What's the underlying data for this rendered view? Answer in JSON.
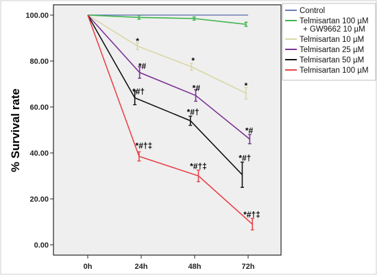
{
  "chart_data": {
    "type": "line",
    "ylabel": "% Survival rate",
    "xlabel": "",
    "categories": [
      "0h",
      "24h",
      "48h",
      "72h"
    ],
    "yticks": [
      "0.00",
      "20.00",
      "40.00",
      "60.00",
      "80.00",
      "100.00"
    ],
    "ylim": [
      -3,
      103
    ],
    "grid": false,
    "legend_position": "right",
    "series": [
      {
        "name": "Control",
        "color": "#6b7fb5",
        "x": [
          0,
          1,
          2,
          3
        ],
        "values": [
          100,
          100,
          100,
          100
        ],
        "err": [
          0,
          0,
          0,
          0
        ]
      },
      {
        "name": "Telmisartan 100 µM\n+ GW9662 10 µM",
        "color": "#3cb44b",
        "x": [
          0,
          0.96,
          1.99,
          2.96
        ],
        "values": [
          100,
          99,
          98.5,
          96
        ],
        "err": [
          0,
          0.8,
          0.7,
          0.9
        ]
      },
      {
        "name": "Telmisartan 10 µM",
        "color": "#d9d7a6",
        "x": [
          0,
          0.93,
          1.94,
          2.96
        ],
        "values": [
          100,
          86.5,
          77.5,
          66
        ],
        "err": [
          0,
          1.5,
          1.5,
          2.5
        ]
      },
      {
        "name": "Telmisartan 25 µM",
        "color": "#7b3294",
        "x": [
          0,
          0.97,
          2.02,
          3.03
        ],
        "values": [
          100,
          75,
          65,
          46
        ],
        "err": [
          0,
          2.5,
          2.5,
          2
        ]
      },
      {
        "name": "Telmisartan 50 µM",
        "color": "#111111",
        "x": [
          0,
          0.88,
          1.92,
          2.89
        ],
        "values": [
          100,
          64,
          54,
          30.5
        ],
        "err": [
          0,
          3,
          2,
          5.5
        ]
      },
      {
        "name": "Telmisartan 100 µM",
        "color": "#e8444a",
        "x": [
          0,
          0.96,
          2.07,
          3.08
        ],
        "values": [
          100,
          38.5,
          30,
          9
        ],
        "err": [
          0,
          2,
          2.5,
          2.5
        ]
      }
    ],
    "annotations": [
      {
        "text": "*",
        "x": 0.93,
        "y": 87.5
      },
      {
        "text": "*#",
        "x": 1.02,
        "y": 76.5
      },
      {
        "text": "*#†",
        "x": 0.95,
        "y": 65.5
      },
      {
        "text": "*#†‡",
        "x": 1.05,
        "y": 42
      },
      {
        "text": "*",
        "x": 1.97,
        "y": 79
      },
      {
        "text": "*#",
        "x": 2.03,
        "y": 67
      },
      {
        "text": "*#†",
        "x": 1.97,
        "y": 56.5
      },
      {
        "text": "*#†‡",
        "x": 2.07,
        "y": 33
      },
      {
        "text": "*",
        "x": 2.96,
        "y": 68
      },
      {
        "text": "*#",
        "x": 3.02,
        "y": 48.5
      },
      {
        "text": "*#†",
        "x": 2.94,
        "y": 36.5
      },
      {
        "text": "*#†‡",
        "x": 3.07,
        "y": 12
      }
    ]
  }
}
